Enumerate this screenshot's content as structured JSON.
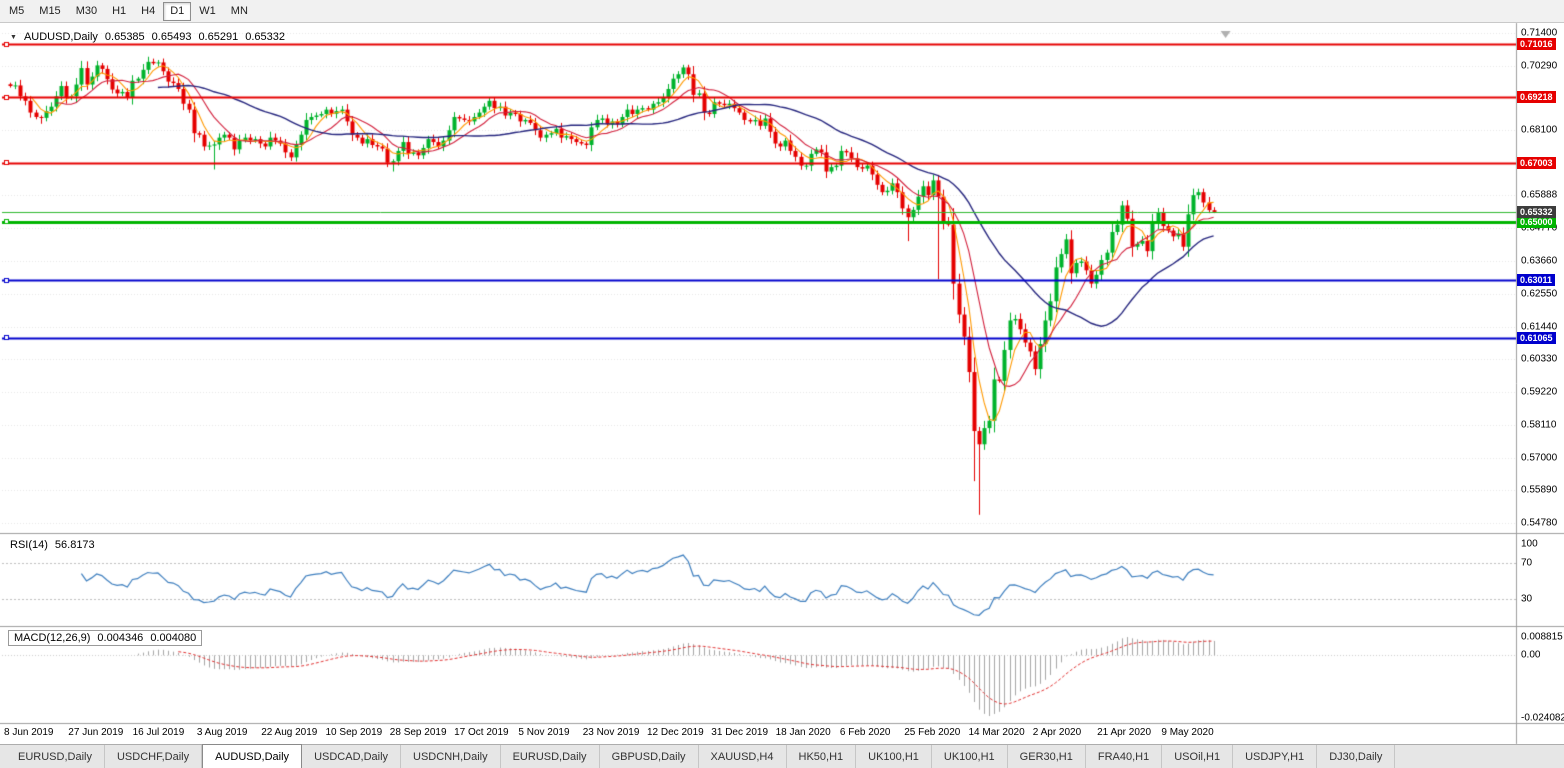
{
  "toolbar": {
    "timeframes": [
      "M5",
      "M15",
      "M30",
      "H1",
      "H4",
      "D1",
      "W1",
      "MN"
    ],
    "active": "D1"
  },
  "chart": {
    "title": {
      "symbol": "AUDUSD,Daily",
      "open": "0.65385",
      "high": "0.65493",
      "low": "0.65291",
      "close": "0.65332"
    },
    "price_axis": {
      "ticks": [
        "0.71400",
        "0.70290",
        "0.68100",
        "0.65888",
        "0.64770",
        "0.63660",
        "0.62550",
        "0.61440",
        "0.60330",
        "0.59220",
        "0.58110",
        "0.57000",
        "0.55890",
        "0.54780"
      ],
      "current": {
        "label": "0.65332",
        "value": 0.65332,
        "color": "#3c3c3c"
      }
    },
    "levels": [
      {
        "label": "0.71016",
        "value": 0.71016,
        "color": "#e60000",
        "width": 2,
        "type": "resistance"
      },
      {
        "label": "0.69218",
        "value": 0.69218,
        "color": "#e60000",
        "width": 2,
        "type": "resistance"
      },
      {
        "label": "0.67003",
        "value": 0.67003,
        "color": "#e60000",
        "width": 2,
        "type": "resistance"
      },
      {
        "label": "0.65000",
        "value": 0.65,
        "color": "#00b400",
        "width": 3,
        "type": "support"
      },
      {
        "label": "0.63011",
        "value": 0.63011,
        "color": "#0000cd",
        "width": 2,
        "type": "support"
      },
      {
        "label": "0.61065",
        "value": 0.61065,
        "color": "#0000cd",
        "width": 2,
        "type": "support"
      }
    ],
    "bid_line": {
      "value": 0.65332,
      "color": "#2eb82e"
    }
  },
  "rsi": {
    "name": "RSI(14)",
    "value": "56.8173",
    "period": 14,
    "levels": [
      70,
      30
    ],
    "axis_ticks": [
      "100",
      "70",
      "30"
    ],
    "color": "#3d7ebe"
  },
  "macd": {
    "name": "MACD(12,26,9)",
    "value_main": "0.004346",
    "value_signal": "0.004080",
    "fast": 12,
    "slow": 26,
    "signal": 9,
    "axis_ticks": [
      "0.008815",
      "0.00",
      "-0.024082"
    ],
    "histogram_color": "#a6a6a6",
    "signal_color": "#e03030"
  },
  "tabs": {
    "items": [
      "EURUSD,Daily",
      "USDCHF,Daily",
      "AUDUSD,Daily",
      "USDCAD,Daily",
      "USDCNH,Daily",
      "EURUSD,Daily",
      "GBPUSD,Daily",
      "XAUUSD,H4",
      "HK50,H1",
      "UK100,H1",
      "UK100,H1",
      "GER30,H1",
      "FRA40,H1",
      "USOil,H1",
      "USDJPY,H1",
      "DJ30,Daily"
    ],
    "active_index": 2
  },
  "chart_data": {
    "type": "candlestick",
    "symbol": "AUDUSD",
    "timeframe": "Daily",
    "title": "AUDUSD,Daily 0.65385 0.65493 0.65291 0.65332",
    "x_labels": [
      "8 Jun 2019",
      "27 Jun 2019",
      "16 Jul 2019",
      "3 Aug 2019",
      "22 Aug 2019",
      "10 Sep 2019",
      "28 Sep 2019",
      "17 Oct 2019",
      "5 Nov 2019",
      "23 Nov 2019",
      "12 Dec 2019",
      "31 Dec 2019",
      "18 Jan 2020",
      "6 Feb 2020",
      "25 Feb 2020",
      "14 Mar 2020",
      "2 Apr 2020",
      "21 Apr 2020",
      "9 May 2020"
    ],
    "ylim": [
      0.5451,
      0.715
    ],
    "closes": [
      0.696,
      0.6962,
      0.6925,
      0.691,
      0.687,
      0.6855,
      0.6852,
      0.6875,
      0.689,
      0.6925,
      0.696,
      0.692,
      0.6925,
      0.6965,
      0.7021,
      0.6965,
      0.6992,
      0.703,
      0.7018,
      0.6983,
      0.6948,
      0.6935,
      0.694,
      0.692,
      0.6978,
      0.6985,
      0.7015,
      0.7042,
      0.7037,
      0.704,
      0.701,
      0.6975,
      0.697,
      0.695,
      0.69,
      0.688,
      0.68,
      0.6795,
      0.6755,
      0.6758,
      0.6762,
      0.6785,
      0.6795,
      0.6785,
      0.6745,
      0.6775,
      0.6785,
      0.6775,
      0.678,
      0.6765,
      0.6755,
      0.6785,
      0.6775,
      0.6765,
      0.6735,
      0.6718,
      0.676,
      0.6795,
      0.6845,
      0.6855,
      0.686,
      0.6865,
      0.688,
      0.6866,
      0.6875,
      0.688,
      0.684,
      0.6795,
      0.6785,
      0.6765,
      0.678,
      0.676,
      0.6755,
      0.6748,
      0.67,
      0.6705,
      0.674,
      0.677,
      0.673,
      0.6735,
      0.6725,
      0.675,
      0.678,
      0.677,
      0.6755,
      0.6775,
      0.681,
      0.6855,
      0.685,
      0.6845,
      0.684,
      0.6855,
      0.687,
      0.689,
      0.691,
      0.6885,
      0.689,
      0.686,
      0.687,
      0.6865,
      0.684,
      0.6845,
      0.6835,
      0.681,
      0.6785,
      0.6795,
      0.68,
      0.6815,
      0.6785,
      0.679,
      0.678,
      0.677,
      0.6765,
      0.676,
      0.682,
      0.6845,
      0.685,
      0.683,
      0.684,
      0.683,
      0.6855,
      0.688,
      0.6865,
      0.688,
      0.6885,
      0.688,
      0.69,
      0.6905,
      0.692,
      0.695,
      0.6985,
      0.7,
      0.7023,
      0.7,
      0.693,
      0.6935,
      0.687,
      0.6865,
      0.6905,
      0.69,
      0.6895,
      0.69,
      0.6885,
      0.687,
      0.6845,
      0.684,
      0.6845,
      0.6825,
      0.685,
      0.6805,
      0.6765,
      0.6755,
      0.6775,
      0.674,
      0.672,
      0.669,
      0.669,
      0.673,
      0.6745,
      0.6735,
      0.667,
      0.6685,
      0.669,
      0.674,
      0.6735,
      0.6715,
      0.6685,
      0.668,
      0.669,
      0.666,
      0.6625,
      0.66,
      0.6605,
      0.663,
      0.66,
      0.6545,
      0.6515,
      0.654,
      0.6585,
      0.662,
      0.659,
      0.664,
      0.6585,
      0.65,
      0.649,
      0.629,
      0.6185,
      0.611,
      0.599,
      0.579,
      0.5745,
      0.58,
      0.5825,
      0.5965,
      0.596,
      0.6065,
      0.6165,
      0.617,
      0.6135,
      0.609,
      0.606,
      0.6,
      0.6085,
      0.6165,
      0.623,
      0.6345,
      0.639,
      0.644,
      0.6325,
      0.636,
      0.6365,
      0.6335,
      0.629,
      0.632,
      0.637,
      0.6395,
      0.6465,
      0.649,
      0.6555,
      0.651,
      0.6415,
      0.6425,
      0.6435,
      0.64,
      0.6495,
      0.653,
      0.6485,
      0.647,
      0.645,
      0.646,
      0.6415,
      0.6525,
      0.659,
      0.66,
      0.6565,
      0.6539,
      0.6533
    ],
    "special_highs": {
      "29": 0.7048,
      "132": 0.7032,
      "218": 0.657,
      "233": 0.6612,
      "236": 0.6549
    },
    "special_lows": {
      "6": 0.6832,
      "40": 0.6677,
      "75": 0.667,
      "176": 0.6434,
      "182": 0.6305,
      "189": 0.562,
      "190": 0.5506,
      "236": 0.6529
    },
    "moving_averages": [
      {
        "period": 5,
        "color": "#ff9900"
      },
      {
        "period": 10,
        "color": "#d2203c"
      },
      {
        "period": 30,
        "color": "#26267e"
      }
    ],
    "up_color": "#00b32c",
    "down_color": "#e50000"
  }
}
